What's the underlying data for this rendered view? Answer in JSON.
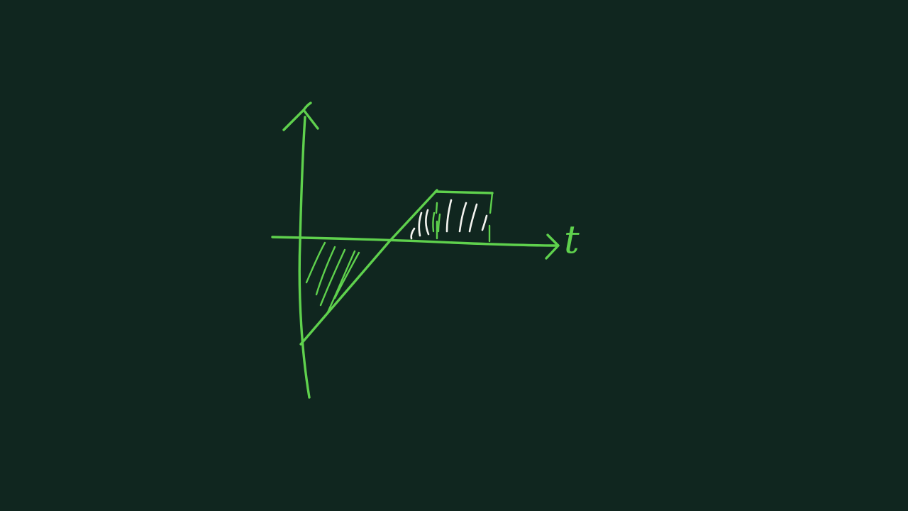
{
  "diagram": {
    "background_color": "#10261f",
    "stroke_color": "#5fd14d",
    "hatch_highlight_color": "#f4f4f0",
    "x_axis_label": "t"
  }
}
